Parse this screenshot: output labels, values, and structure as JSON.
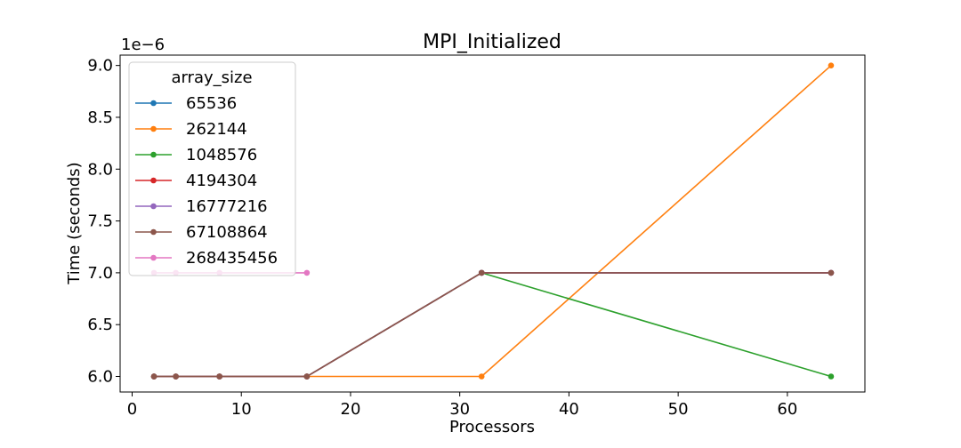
{
  "chart_data": {
    "type": "line",
    "title": "MPI_Initialized",
    "xlabel": "Processors",
    "ylabel": "Time (seconds)",
    "y_offset_label": "1e−6",
    "y_scale_factor": 1e-06,
    "xlim": [
      -1.1,
      67.1
    ],
    "ylim": [
      5.85,
      9.1
    ],
    "x_ticks": [
      0,
      10,
      20,
      30,
      40,
      50,
      60
    ],
    "x_tick_labels": [
      "0",
      "10",
      "20",
      "30",
      "40",
      "50",
      "60"
    ],
    "y_ticks": [
      6.0,
      6.5,
      7.0,
      7.5,
      8.0,
      8.5,
      9.0
    ],
    "y_tick_labels": [
      "6.0",
      "6.5",
      "7.0",
      "7.5",
      "8.0",
      "8.5",
      "9.0"
    ],
    "grid": false,
    "legend": {
      "title": "array_size",
      "position": "top-left"
    },
    "series": [
      {
        "name": "65536",
        "color": "#1f77b4",
        "x": [
          2,
          4,
          8,
          16,
          32,
          64
        ],
        "y": [
          6.0,
          6.0,
          6.0,
          6.0,
          7.0,
          7.0
        ]
      },
      {
        "name": "262144",
        "color": "#ff7f0e",
        "x": [
          2,
          4,
          8,
          16,
          32,
          64
        ],
        "y": [
          6.0,
          6.0,
          6.0,
          6.0,
          6.0,
          9.0
        ]
      },
      {
        "name": "1048576",
        "color": "#2ca02c",
        "x": [
          2,
          4,
          8,
          16,
          32,
          64
        ],
        "y": [
          6.0,
          6.0,
          6.0,
          6.0,
          7.0,
          6.0
        ]
      },
      {
        "name": "4194304",
        "color": "#d62728",
        "x": [
          2,
          4,
          8,
          16,
          32,
          64
        ],
        "y": [
          6.0,
          6.0,
          6.0,
          6.0,
          7.0,
          7.0
        ]
      },
      {
        "name": "16777216",
        "color": "#9467bd",
        "x": [
          2,
          4,
          8,
          16,
          32,
          64
        ],
        "y": [
          6.0,
          6.0,
          6.0,
          6.0,
          7.0,
          7.0
        ]
      },
      {
        "name": "67108864",
        "color": "#8c564b",
        "x": [
          2,
          4,
          8,
          16,
          32,
          64
        ],
        "y": [
          6.0,
          6.0,
          6.0,
          6.0,
          7.0,
          7.0
        ]
      },
      {
        "name": "268435456",
        "color": "#e377c2",
        "x": [
          2,
          4,
          8,
          16
        ],
        "y": [
          7.0,
          7.0,
          7.0,
          7.0
        ]
      }
    ]
  }
}
